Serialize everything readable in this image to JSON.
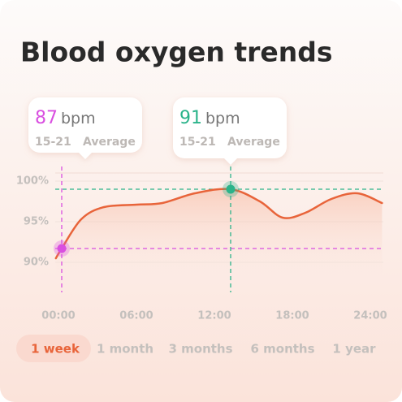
{
  "chart_data": {
    "type": "line",
    "title": "Blood oxygen trends",
    "x": [
      -0.2,
      0.25,
      1.75,
      3.5,
      6,
      8,
      10.5,
      13.25,
      15.5,
      17.25,
      19,
      21,
      23,
      24.9
    ],
    "values": [
      90.5,
      91.7,
      95.3,
      96.8,
      97.1,
      97.3,
      98.5,
      99,
      97.5,
      95.5,
      96.1,
      97.8,
      98.5,
      97.3
    ],
    "color": "#e8643a",
    "xlim": [
      0,
      24
    ],
    "ylim": [
      88,
      101
    ],
    "xticks": [
      {
        "value": 0,
        "label": "00:00"
      },
      {
        "value": 6,
        "label": "06:00"
      },
      {
        "value": 12,
        "label": "12:00"
      },
      {
        "value": 18,
        "label": "18:00"
      },
      {
        "value": 24,
        "label": "24:00"
      }
    ],
    "yticks": [
      {
        "value": 90,
        "label": "90%"
      },
      {
        "value": 95,
        "label": "95%"
      },
      {
        "value": 100,
        "label": "100%"
      }
    ],
    "grid": true,
    "highlights": [
      {
        "reading": 87,
        "unit": "bpm",
        "range": "15-21",
        "label": "Average",
        "x": 0.25,
        "y": 91.7,
        "color": "#d94fe0"
      },
      {
        "reading": 91,
        "unit": "bpm",
        "range": "15-21",
        "label": "Average",
        "x": 13.25,
        "y": 99,
        "color": "#2bb38a"
      }
    ],
    "tabs": [
      "1 week",
      "1 month",
      "3 months",
      "6 months",
      "1 year"
    ],
    "active_tab": 0
  }
}
